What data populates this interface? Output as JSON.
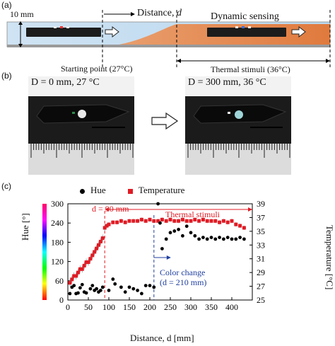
{
  "panel_a": {
    "label": "(a)",
    "height_label": "10 mm",
    "distance_label": "Distance, ",
    "distance_symbol": "d",
    "dynamic_label": "Dynamic sensing",
    "start_label": "Starting point (27°C)",
    "thermal_label": "Thermal stimuli (36°C)"
  },
  "panel_b": {
    "label": "(b)",
    "left_caption": "D = 0 mm, 27 °C",
    "right_caption": "D = 300 mm, 36 °C"
  },
  "panel_c": {
    "label": "(c)",
    "legend_hue": "Hue",
    "legend_temperature": "Temperature",
    "annot_d90": "d = 90 mm",
    "annot_thermal": "Thermal stimuli",
    "annot_color_change_1": "Color change",
    "annot_color_change_2": "(d = 210 mm)",
    "colors": {
      "hue": "#000000",
      "temperature": "#e01b24",
      "color_change": "#1f3f9f"
    }
  },
  "chart_data": {
    "type": "scatter",
    "xlabel": "Distance, d [mm]",
    "ylabel_left": "Hue [°]",
    "ylabel_right": "Temperature [°C]",
    "xlim": [
      0,
      450
    ],
    "ylim_left": [
      0,
      300
    ],
    "ylim_right": [
      25,
      39
    ],
    "x_ticks": [
      0,
      50,
      100,
      150,
      200,
      250,
      300,
      350,
      400
    ],
    "y_left_ticks": [
      0,
      60,
      120,
      180,
      240,
      300
    ],
    "y_right_ticks": [
      25,
      27,
      29,
      31,
      33,
      35,
      37,
      39
    ],
    "series": [
      {
        "name": "Hue",
        "x": [
          5,
          10,
          15,
          20,
          25,
          30,
          35,
          40,
          45,
          55,
          60,
          65,
          70,
          75,
          80,
          85,
          100,
          110,
          115,
          130,
          140,
          150,
          160,
          170,
          180,
          190,
          200,
          210,
          220,
          225,
          230,
          240,
          250,
          260,
          270,
          280,
          290,
          300,
          310,
          320,
          330,
          340,
          350,
          360,
          370,
          380,
          390,
          400,
          410,
          420,
          430
        ],
        "values": [
          20,
          40,
          45,
          20,
          22,
          38,
          48,
          25,
          22,
          35,
          45,
          30,
          35,
          25,
          30,
          40,
          30,
          65,
          50,
          40,
          25,
          40,
          35,
          30,
          20,
          45,
          45,
          40,
          300,
          240,
          160,
          190,
          210,
          215,
          220,
          200,
          230,
          210,
          200,
          190,
          195,
          190,
          195,
          190,
          195,
          190,
          195,
          190,
          190,
          195,
          190
        ]
      },
      {
        "name": "Temperature",
        "x": [
          5,
          10,
          15,
          20,
          25,
          30,
          35,
          40,
          45,
          50,
          55,
          60,
          65,
          70,
          75,
          80,
          85,
          90,
          95,
          100,
          110,
          120,
          130,
          140,
          150,
          160,
          170,
          180,
          190,
          200,
          210,
          220,
          230,
          240,
          250,
          260,
          270,
          280,
          290,
          300,
          310,
          320,
          330,
          340,
          350,
          360,
          370,
          380,
          390,
          400,
          410,
          420,
          430
        ],
        "values": [
          27.5,
          28.0,
          28.5,
          28.5,
          29.0,
          29.5,
          29.5,
          30.0,
          30.5,
          30.5,
          31.0,
          31.5,
          32.0,
          32.5,
          33.0,
          33.5,
          34.0,
          35.5,
          35.8,
          36.0,
          36.3,
          36.3,
          36.5,
          36.3,
          36.5,
          36.5,
          36.5,
          36.7,
          36.5,
          36.7,
          36.5,
          36.5,
          36.7,
          36.5,
          36.7,
          36.5,
          36.5,
          36.7,
          36.5,
          36.5,
          36.7,
          36.5,
          36.7,
          36.5,
          36.5,
          36.5,
          36.3,
          36.5,
          36.3,
          36.5,
          36.0,
          35.8,
          35.5
        ]
      }
    ]
  }
}
